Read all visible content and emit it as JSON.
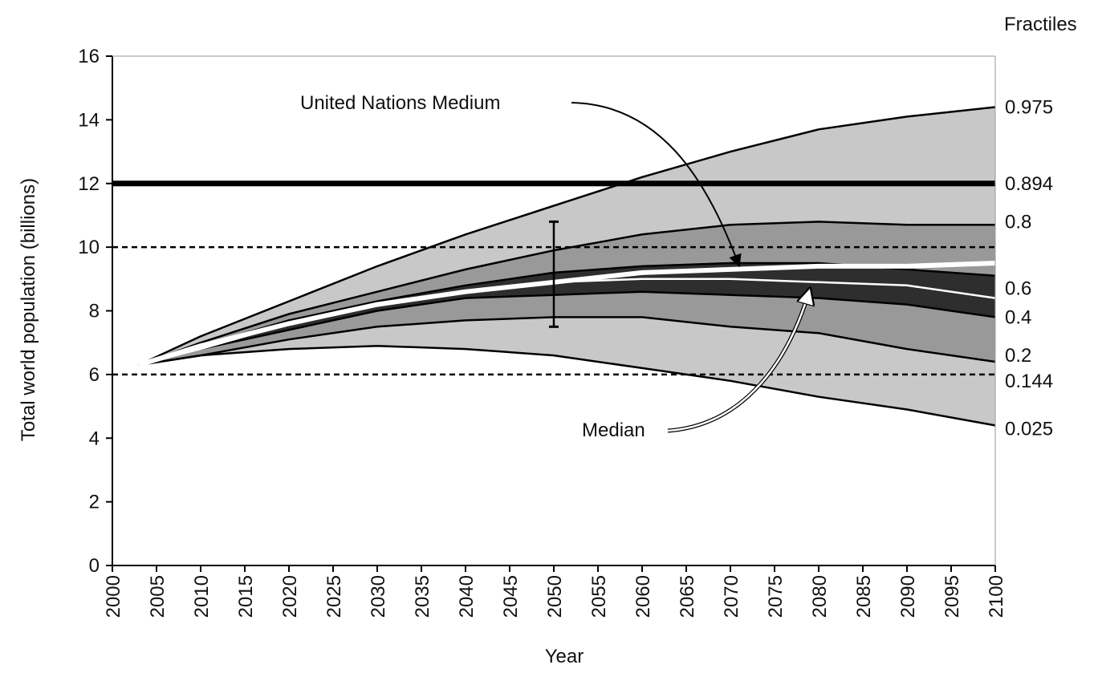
{
  "chart_data": {
    "type": "area",
    "title": "",
    "xlabel": "Year",
    "ylabel": "Total world population (billions)",
    "xlim": [
      2000,
      2100
    ],
    "ylim": [
      0,
      16
    ],
    "xticks": [
      2000,
      2005,
      2010,
      2015,
      2020,
      2025,
      2030,
      2035,
      2040,
      2045,
      2050,
      2055,
      2060,
      2065,
      2070,
      2075,
      2080,
      2085,
      2090,
      2095,
      2100
    ],
    "yticks": [
      0,
      2,
      4,
      6,
      8,
      10,
      12,
      14,
      16
    ],
    "grid": false,
    "fractiles_header": "Fractiles",
    "x": [
      2003,
      2010,
      2020,
      2030,
      2040,
      2050,
      2060,
      2070,
      2080,
      2090,
      2100
    ],
    "series": [
      {
        "name": "0.975",
        "values": [
          6.3,
          7.2,
          8.3,
          9.4,
          10.4,
          11.3,
          12.2,
          13.0,
          13.7,
          14.1,
          14.4
        ]
      },
      {
        "name": "0.8",
        "values": [
          6.3,
          7.0,
          7.9,
          8.6,
          9.3,
          9.9,
          10.4,
          10.7,
          10.8,
          10.7,
          10.7
        ]
      },
      {
        "name": "0.6",
        "values": [
          6.3,
          6.9,
          7.7,
          8.3,
          8.8,
          9.2,
          9.4,
          9.5,
          9.5,
          9.3,
          9.1
        ]
      },
      {
        "name": "Median",
        "values": [
          6.3,
          6.8,
          7.6,
          8.2,
          8.6,
          8.9,
          9.0,
          9.0,
          8.9,
          8.8,
          8.4
        ]
      },
      {
        "name": "0.4",
        "values": [
          6.3,
          6.8,
          7.4,
          8.0,
          8.4,
          8.5,
          8.6,
          8.5,
          8.4,
          8.2,
          7.8
        ]
      },
      {
        "name": "0.2",
        "values": [
          6.3,
          6.6,
          7.1,
          7.5,
          7.7,
          7.8,
          7.8,
          7.5,
          7.3,
          6.8,
          6.4
        ]
      },
      {
        "name": "0.025",
        "values": [
          6.3,
          6.6,
          6.8,
          6.9,
          6.8,
          6.6,
          6.2,
          5.8,
          5.3,
          4.9,
          4.4
        ]
      }
    ],
    "un_medium": {
      "name": "United Nations Medium",
      "x": [
        2003,
        2010,
        2020,
        2030,
        2040,
        2050,
        2060,
        2070,
        2080,
        2090,
        2100
      ],
      "values": [
        6.3,
        6.9,
        7.6,
        8.2,
        8.6,
        8.9,
        9.2,
        9.3,
        9.4,
        9.4,
        9.5
      ]
    },
    "reference_lines": [
      {
        "y": 12,
        "style": "thick-solid",
        "fractile_label": "0.894"
      },
      {
        "y": 10,
        "style": "dashed"
      },
      {
        "y": 6,
        "style": "dashed",
        "fractile_label": "0.144"
      }
    ],
    "error_bar": {
      "x": 2050,
      "low": 7.5,
      "high": 10.8
    },
    "fractile_labels": [
      {
        "label": "0.975",
        "y": 14.4
      },
      {
        "label": "0.894",
        "y": 12.0
      },
      {
        "label": "0.8",
        "y": 10.8
      },
      {
        "label": "0.6",
        "y": 8.7
      },
      {
        "label": "0.4",
        "y": 7.8
      },
      {
        "label": "0.2",
        "y": 6.6
      },
      {
        "label": "0.144",
        "y": 5.8
      },
      {
        "label": "0.025",
        "y": 4.3
      }
    ],
    "annotations": [
      {
        "text": "United Nations Medium",
        "points_to": [
          2071,
          9.3
        ]
      },
      {
        "text": "Median",
        "points_to": [
          2079,
          8.9
        ]
      }
    ],
    "colors": {
      "outer_band": "#c8c8c8",
      "middle_band": "#999999",
      "inner_band": "#2e2e2e",
      "boundary": "#000000",
      "median": "#ffffff"
    }
  }
}
